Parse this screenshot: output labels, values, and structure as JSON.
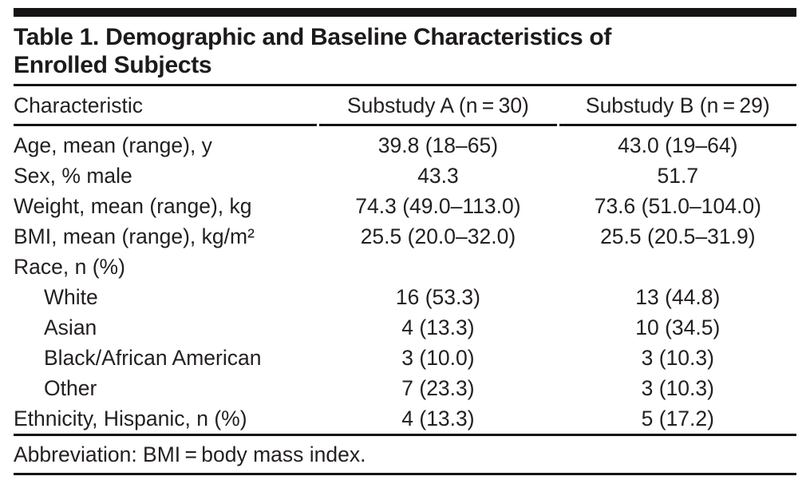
{
  "table": {
    "title": "Table 1. Demographic and Baseline Characteristics of Enrolled Subjects",
    "columns": [
      "Characteristic",
      "Substudy A (n = 30)",
      "Substudy B (n = 29)"
    ],
    "rows": [
      {
        "label": "Age, mean (range), y",
        "indent": false,
        "substudy_a": "39.8 (18–65)",
        "substudy_b": "43.0 (19–64)"
      },
      {
        "label": "Sex, % male",
        "indent": false,
        "substudy_a": "43.3",
        "substudy_b": "51.7"
      },
      {
        "label": "Weight, mean (range), kg",
        "indent": false,
        "substudy_a": "74.3 (49.0–113.0)",
        "substudy_b": "73.6 (51.0–104.0)"
      },
      {
        "label": "BMI, mean (range), kg/m²",
        "indent": false,
        "substudy_a": "25.5 (20.0–32.0)",
        "substudy_b": "25.5 (20.5–31.9)"
      },
      {
        "label": "Race, n (%)",
        "indent": false,
        "substudy_a": "",
        "substudy_b": ""
      },
      {
        "label": "White",
        "indent": true,
        "substudy_a": "16 (53.3)",
        "substudy_b": "13 (44.8)"
      },
      {
        "label": "Asian",
        "indent": true,
        "substudy_a": "4 (13.3)",
        "substudy_b": "10 (34.5)"
      },
      {
        "label": "Black/African American",
        "indent": true,
        "substudy_a": "3 (10.0)",
        "substudy_b": "3 (10.3)"
      },
      {
        "label": "Other",
        "indent": true,
        "substudy_a": "7 (23.3)",
        "substudy_b": "3 (10.3)"
      },
      {
        "label": "Ethnicity, Hispanic, n (%)",
        "indent": false,
        "substudy_a": "4 (13.3)",
        "substudy_b": "5 (17.2)"
      }
    ],
    "footnote": "Abbreviation: BMI = body mass index.",
    "colors": {
      "text": "#231f20",
      "rule": "#161314",
      "background": "#ffffff"
    }
  }
}
